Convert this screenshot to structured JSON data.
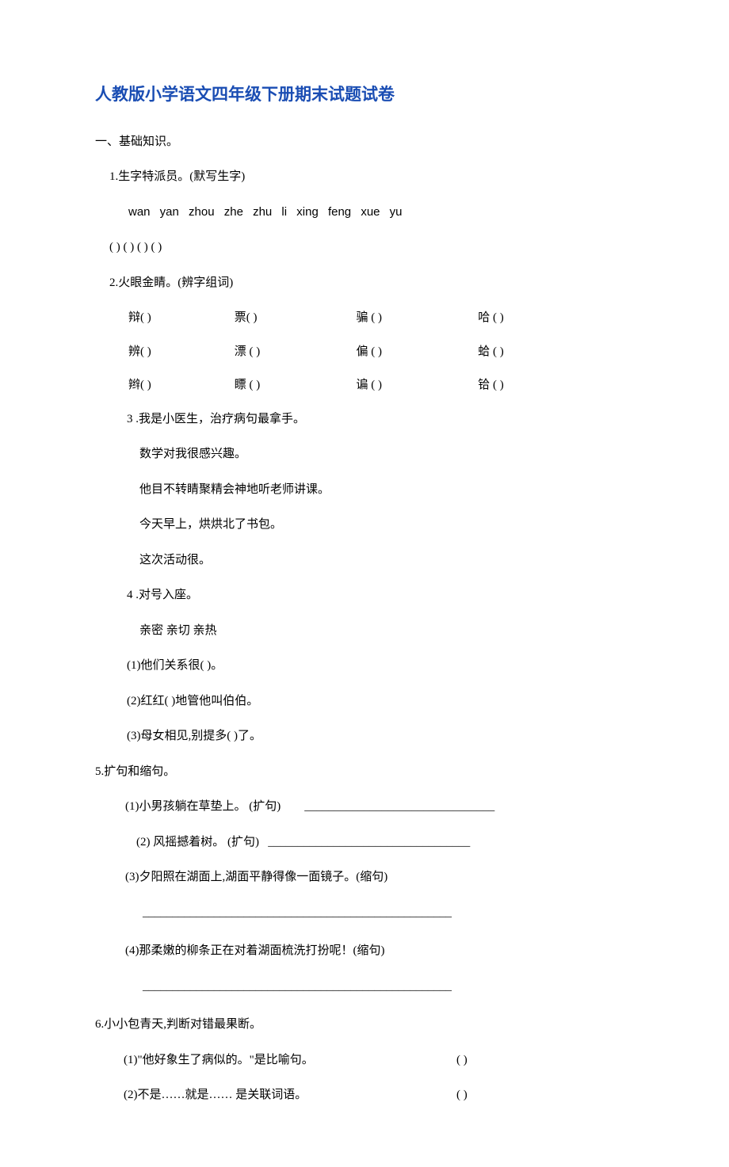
{
  "title": "人教版小学语文四年级下册期末试题试卷",
  "colors": {
    "title_color": "#1a4db3",
    "body_text": "#000000",
    "bg": "#ffffff"
  },
  "typography": {
    "title_fontsize": 21,
    "body_fontsize": 15,
    "line_height": 1.9,
    "font_family": "SimSun"
  },
  "section1": {
    "header": "一、基础知识。",
    "q1": {
      "label": "1.生字特派员。(默写生字)",
      "pinyin": "wan yan   zhou zhe   zhu li   xing feng xue yu",
      "parens": "(        )  (        ) (       )  (                )"
    },
    "q2": {
      "label": "2.火眼金睛。(辨字组词)",
      "rows": [
        {
          "a": "辩(      )",
          "b": "票(        )",
          "c": "骗 (        )",
          "d": "哈 (        )"
        },
        {
          "a": "辨(      )",
          "b": "漂 (        )",
          "c": "偏 (        )",
          "d": "蛤 (        )"
        },
        {
          "a": "辫(      )",
          "b": "瞟 (        )",
          "c": "谝 (        )",
          "d": "铪 (        )"
        }
      ]
    },
    "q3": {
      "label": "3 .我是小医生，治疗病句最拿手。",
      "sentences": [
        "数学对我很感兴趣。",
        "他目不转睛聚精会神地听老师讲课。",
        "今天早上，烘烘北了书包。",
        "这次活动很。"
      ]
    },
    "q4": {
      "label": "4 .对号入座。",
      "words": "亲密    亲切    亲热",
      "options": [
        "(1)他们关系很(    )。",
        "(2)红红(    )地管他叫伯伯。",
        "(3)母女相见,别提多(    )了。"
      ]
    },
    "q5": {
      "label": "5.扩句和缩句。",
      "items": [
        {
          "text": "(1)小男孩躺在草垫上。 (扩句)",
          "blank": "________________________________"
        },
        {
          "text": "(2)  风摇撼着树。 (扩句)",
          "blank": "__________________________________"
        },
        {
          "text": "(3)夕阳照在湖面上,湖面平静得像一面镜子。(缩句)",
          "line": "____________________________________________________"
        },
        {
          "text": "(4)那柔嫩的柳条正在对着湖面梳洗打扮呢！(缩句)",
          "line": "____________________________________________________"
        }
      ]
    },
    "q6": {
      "label": "6.小小包青天,判断对错最果断。",
      "items": [
        {
          "text": "(1)\"他好象生了病似的。\"是比喻句。",
          "paren": "(    )"
        },
        {
          "text": "(2)不是……就是…… 是关联词语。",
          "paren": "(    )"
        }
      ]
    }
  }
}
